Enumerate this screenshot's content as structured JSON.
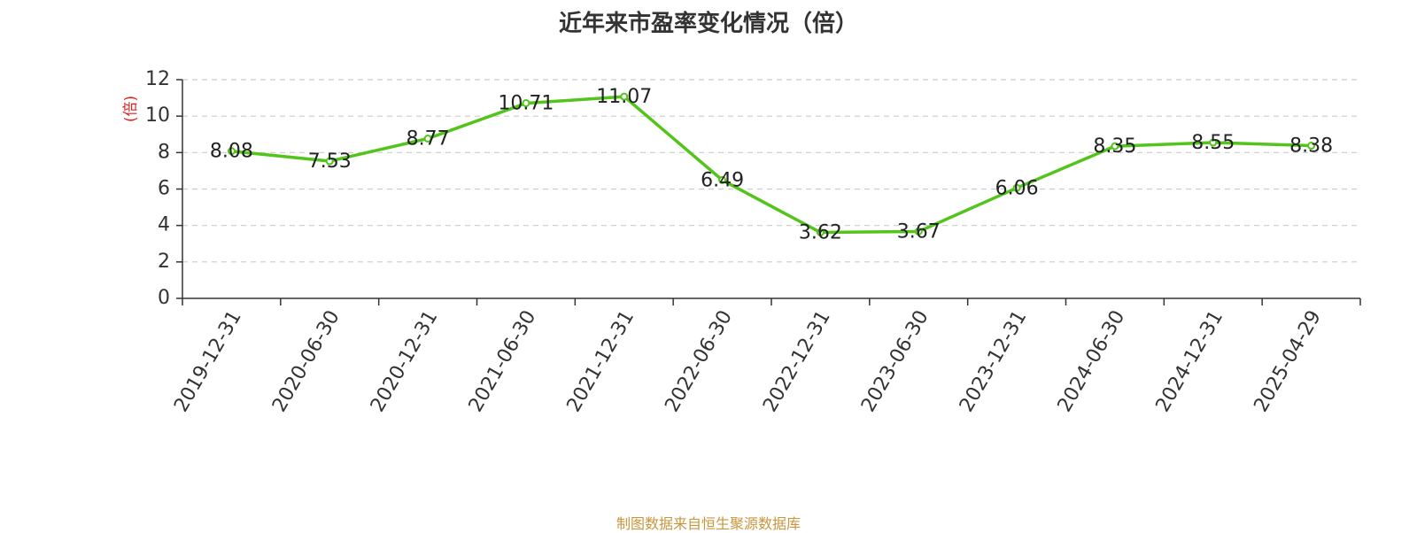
{
  "chart_data": {
    "type": "line",
    "title": "近年来市盈率变化情况（倍）",
    "ylabel": "(倍)",
    "xlabel": "",
    "categories": [
      "2019-12-31",
      "2020-06-30",
      "2020-12-31",
      "2021-06-30",
      "2021-12-31",
      "2022-06-30",
      "2022-12-31",
      "2023-06-30",
      "2023-12-31",
      "2024-06-30",
      "2024-12-31",
      "2025-04-29"
    ],
    "values": [
      8.08,
      7.53,
      8.77,
      10.71,
      11.07,
      6.49,
      3.62,
      3.67,
      6.06,
      8.35,
      8.55,
      8.38
    ],
    "value_labels": [
      "8.08",
      "7.53",
      "8.77",
      "10.71",
      "11.07",
      "6.49",
      "3.62",
      "3.67",
      "6.06",
      "8.35",
      "8.55",
      "8.38"
    ],
    "ylim": [
      0,
      12
    ],
    "yticks": [
      "0",
      "2",
      "4",
      "6",
      "8",
      "10",
      "12"
    ],
    "grid": true,
    "line_color": "#52c41a",
    "ylabel_color": "#e02020"
  },
  "footer": {
    "source": "制图数据来自恒生聚源数据库"
  }
}
